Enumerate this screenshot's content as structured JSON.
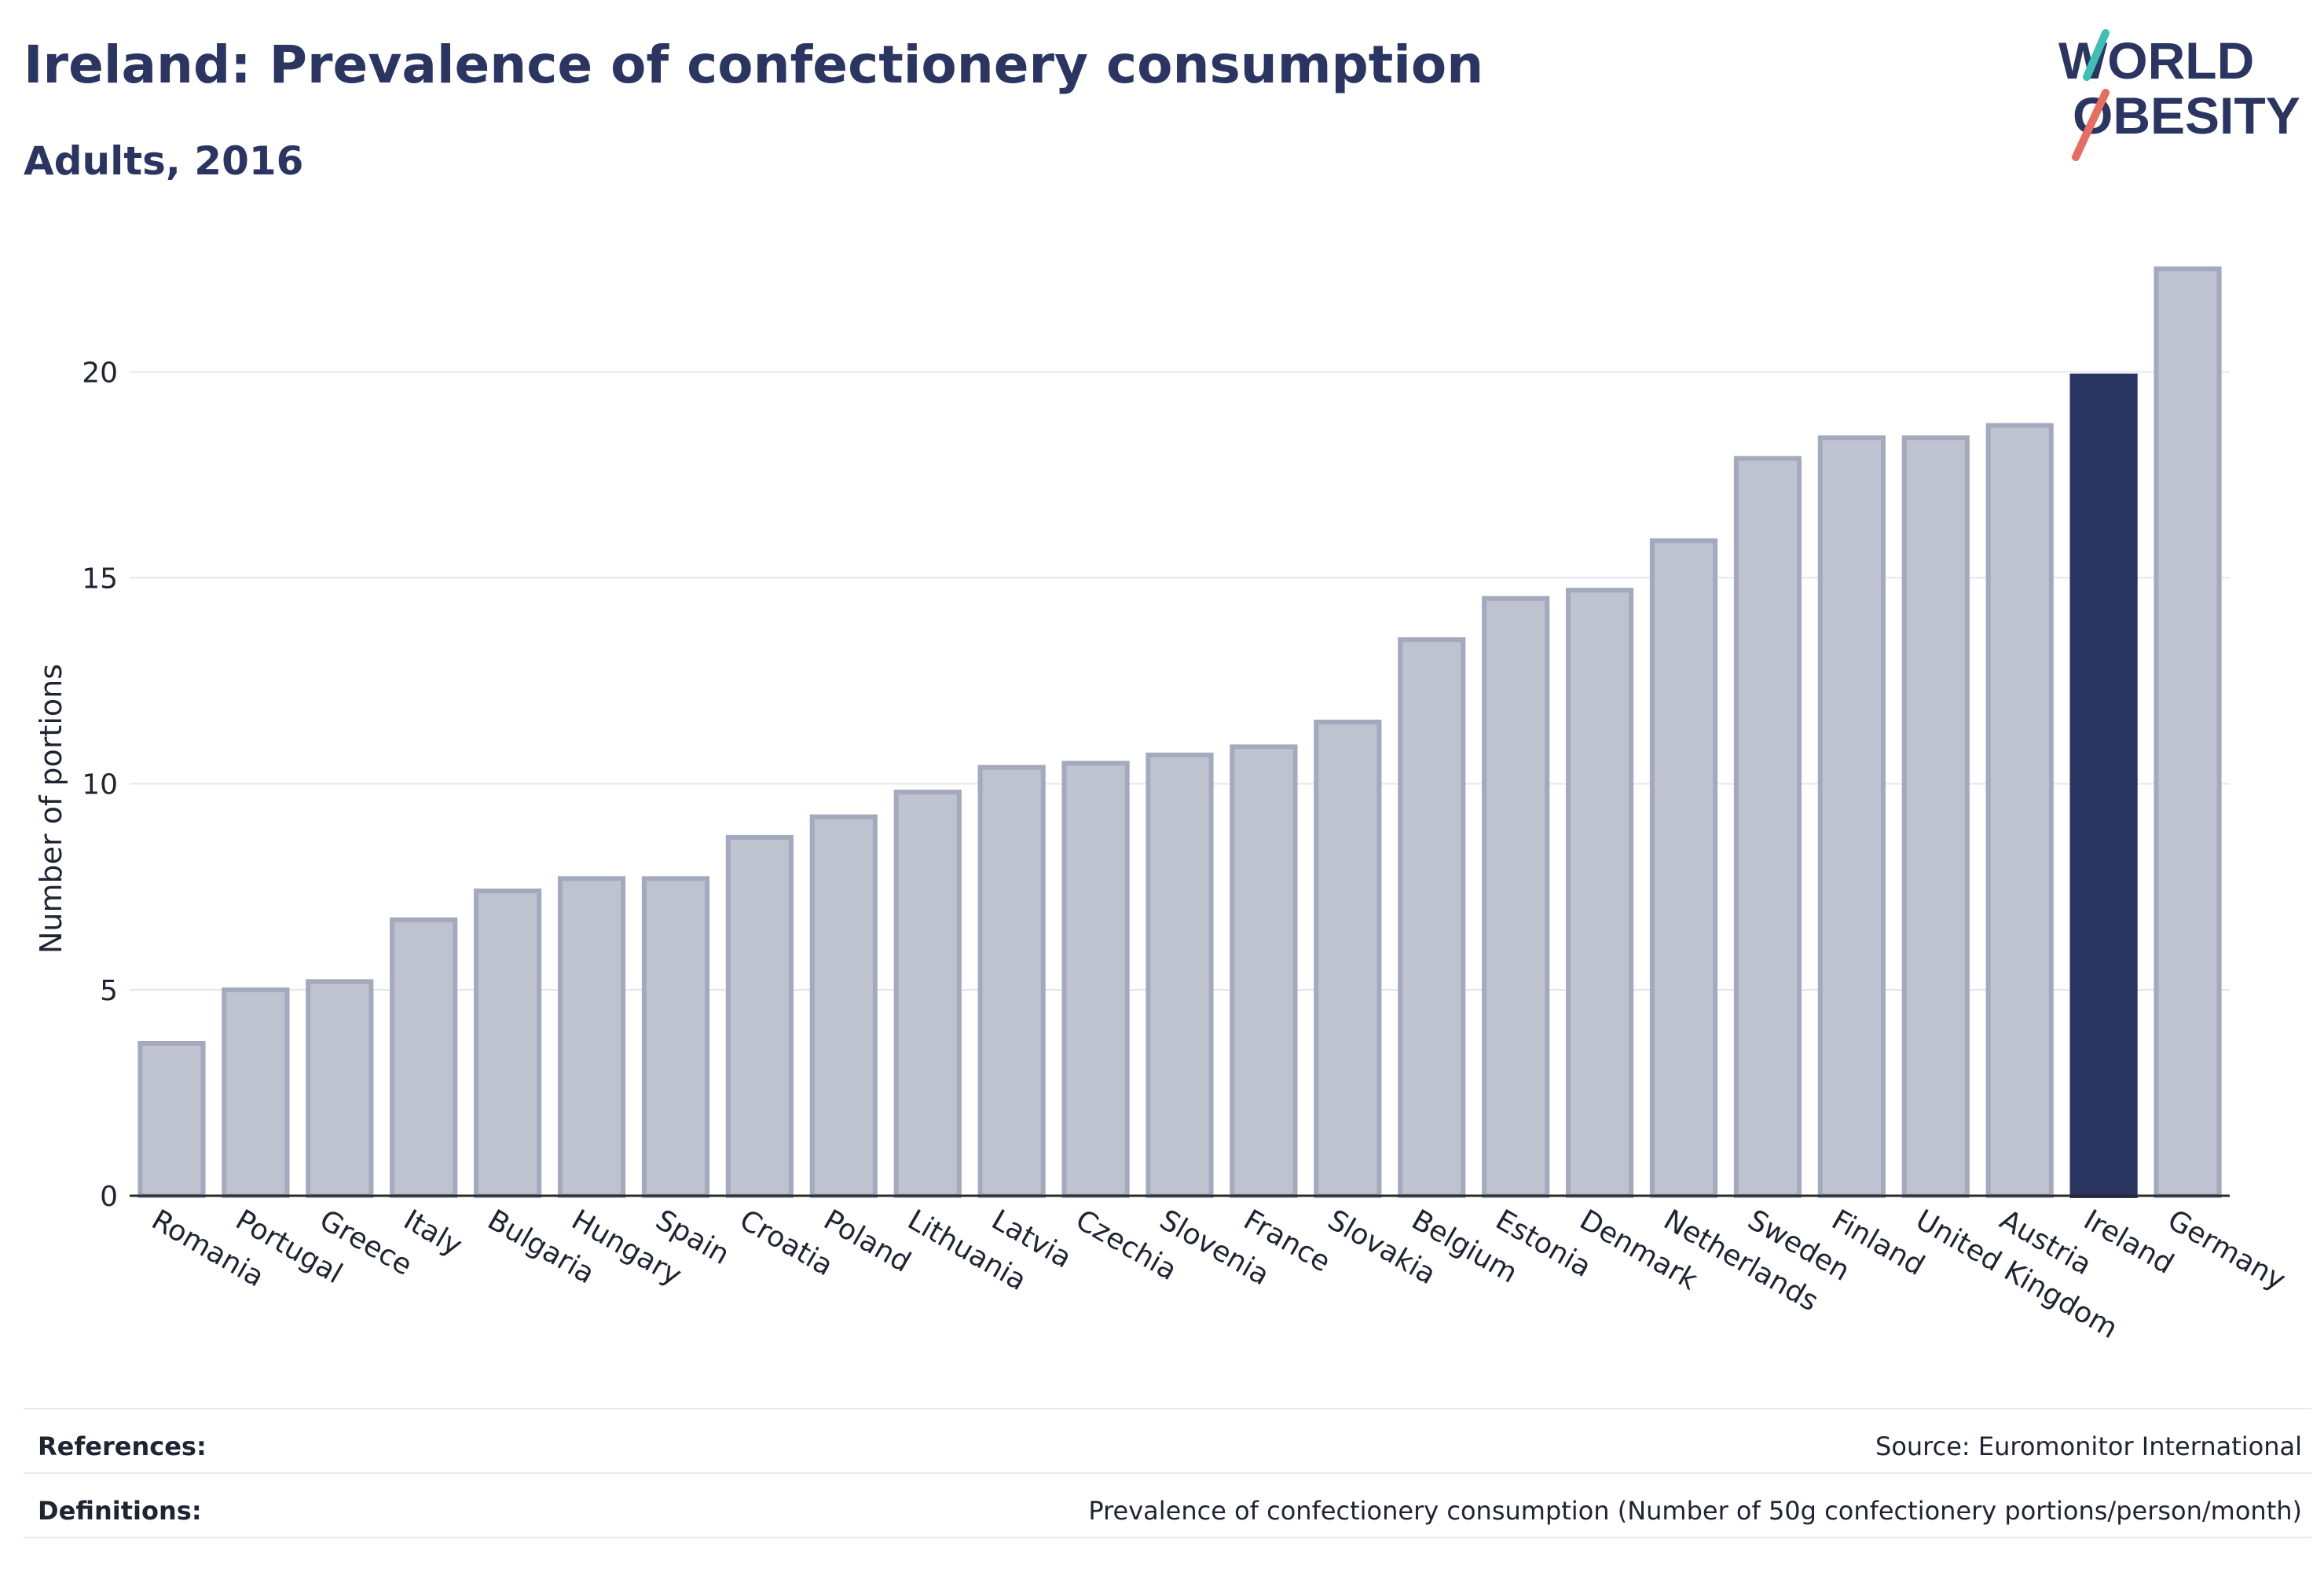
{
  "header": {
    "title": "Ireland: Prevalence of confectionery consumption",
    "subtitle": "Adults, 2016"
  },
  "logo": {
    "line1": "WORLD",
    "line2": "OBESITY"
  },
  "colors": {
    "highlight": "#2b3561",
    "bar": "#bfc2cf",
    "bar_stroke": "#a4a9bd",
    "grid": "#e6e7ec",
    "title": "#2b3561",
    "logo_teal": "#3dbfb3",
    "logo_coral": "#e86c5f"
  },
  "chart_data": {
    "type": "bar",
    "ylabel": "Number of portions",
    "xlabel": "",
    "ylim": [
      0,
      22.6
    ],
    "yticks": [
      0,
      5,
      10,
      15,
      20
    ],
    "grid": true,
    "highlight": "Ireland",
    "categories": [
      "Romania",
      "Portugal",
      "Greece",
      "Italy",
      "Bulgaria",
      "Hungary",
      "Spain",
      "Croatia",
      "Poland",
      "Lithuania",
      "Latvia",
      "Czechia",
      "Slovenia",
      "France",
      "Slovakia",
      "Belgium",
      "Estonia",
      "Denmark",
      "Netherlands",
      "Sweden",
      "Finland",
      "United Kingdom",
      "Austria",
      "Ireland",
      "Germany"
    ],
    "values": [
      3.7,
      5.0,
      5.2,
      6.7,
      7.4,
      7.7,
      7.7,
      8.7,
      9.2,
      9.8,
      10.4,
      10.5,
      10.7,
      10.9,
      11.5,
      13.5,
      14.5,
      14.7,
      15.9,
      17.9,
      18.4,
      18.4,
      18.7,
      19.9,
      22.5
    ]
  },
  "footer": {
    "references_label": "References:",
    "references_value": "Source: Euromonitor International",
    "definitions_label": "Definitions:",
    "definitions_value": "Prevalence of confectionery consumption (Number of 50g confectionery portions/person/month)"
  }
}
